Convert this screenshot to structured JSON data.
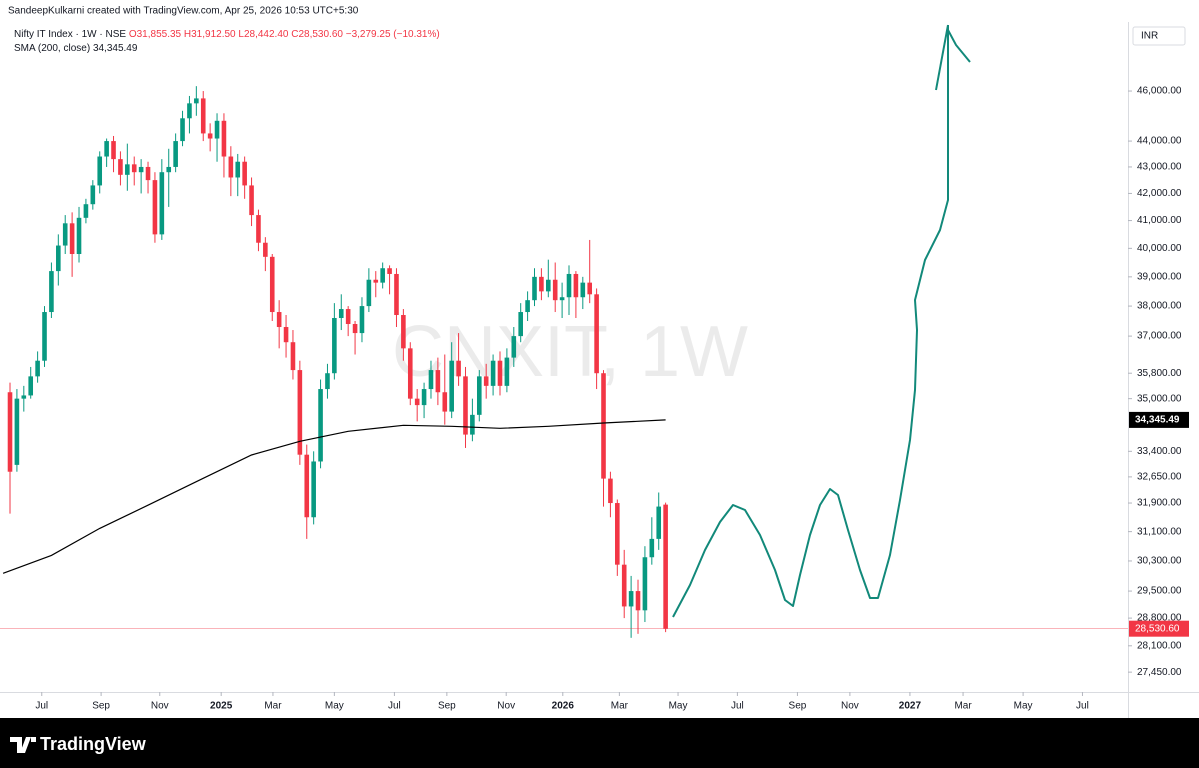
{
  "header": {
    "credit": "SandeepKulkarni created with TradingView.com, Apr 25, 2026 10:53 UTC+5:30",
    "currency": "INR"
  },
  "chart_data": {
    "type": "candlestick",
    "title": "Nifty IT Index · 1W · NSE",
    "watermark": "CNXIT, 1W",
    "ohlc_labels": [
      "O31,855.35",
      "H31,912.50",
      "L28,442.40",
      "C28,530.60"
    ],
    "change_label": "−3,279.25 (−10.31%)",
    "log": true,
    "ylim": [
      26970,
      48910
    ],
    "yticks": [
      {
        "value": 46000,
        "label": "46,000.00"
      },
      {
        "value": 44000,
        "label": "44,000.00"
      },
      {
        "value": 43000,
        "label": "43,000.00"
      },
      {
        "value": 42000,
        "label": "42,000.00"
      },
      {
        "value": 41000,
        "label": "41,000.00"
      },
      {
        "value": 40000,
        "label": "40,000.00"
      },
      {
        "value": 39000,
        "label": "39,000.00"
      },
      {
        "value": 38000,
        "label": "38,000.00"
      },
      {
        "value": 37000,
        "label": "37,000.00"
      },
      {
        "value": 35800,
        "label": "35,800.00"
      },
      {
        "value": 35000,
        "label": "35,000.00"
      },
      {
        "value": 33400,
        "label": "33,400.00"
      },
      {
        "value": 32650,
        "label": "32,650.00"
      },
      {
        "value": 31900,
        "label": "31,900.00"
      },
      {
        "value": 31100,
        "label": "31,100.00"
      },
      {
        "value": 30300,
        "label": "30,300.00"
      },
      {
        "value": 29500,
        "label": "29,500.00"
      },
      {
        "value": 28800,
        "label": "28,800.00"
      },
      {
        "value": 28100,
        "label": "28,100.00"
      },
      {
        "value": 27450,
        "label": "27,450.00"
      }
    ],
    "xlim": [
      -1.45,
      162
    ],
    "xticks": [
      {
        "value": 4.6,
        "label": "Jul"
      },
      {
        "value": 13.2,
        "label": "Sep"
      },
      {
        "value": 21.7,
        "label": "Nov"
      },
      {
        "value": 30.6,
        "label": "2025"
      },
      {
        "value": 38.1,
        "label": "Mar"
      },
      {
        "value": 47.0,
        "label": "May"
      },
      {
        "value": 55.7,
        "label": "Jul"
      },
      {
        "value": 63.3,
        "label": "Sep"
      },
      {
        "value": 71.9,
        "label": "Nov"
      },
      {
        "value": 80.1,
        "label": "2026"
      },
      {
        "value": 88.3,
        "label": "Mar"
      },
      {
        "value": 96.8,
        "label": "May"
      },
      {
        "value": 105.4,
        "label": "Jul"
      },
      {
        "value": 114.1,
        "label": "Sep"
      },
      {
        "value": 121.7,
        "label": "Nov"
      },
      {
        "value": 130.4,
        "label": "2027"
      },
      {
        "value": 138.1,
        "label": "Mar"
      },
      {
        "value": 146.8,
        "label": "May"
      },
      {
        "value": 155.4,
        "label": "Jul"
      }
    ],
    "up_color": "#089981",
    "down_color": "#f23645",
    "open": [
      35200,
      33000,
      35000,
      35100,
      35700,
      36200,
      37800,
      39200,
      40100,
      40900,
      39800,
      41100,
      41600,
      42300,
      43400,
      44000,
      43300,
      42700,
      43100,
      42800,
      43000,
      42500,
      40500,
      42800,
      43000,
      44000,
      44900,
      45500,
      45700,
      44300,
      44100,
      44800,
      43400,
      42600,
      43200,
      42300,
      41200,
      40200,
      39700,
      37800,
      37300,
      36800,
      35900,
      33300,
      31500,
      33100,
      35300,
      35800,
      37600,
      37900,
      37400,
      37100,
      38000,
      38900,
      38800,
      39300,
      39100,
      37700,
      36600,
      35000,
      34800,
      35300,
      35900,
      35200,
      34600,
      36200,
      35700,
      33900,
      34500,
      35700,
      35400,
      36200,
      35400,
      36300,
      37000,
      37800,
      38200,
      39000,
      38500,
      38900,
      38200,
      38300,
      39100,
      38300,
      38800,
      38400,
      35800,
      32600,
      31900,
      30200,
      29100,
      29500,
      29000,
      30400,
      30900,
      31855.35
    ],
    "high": [
      35500,
      35300,
      35400,
      36000,
      36500,
      38000,
      39500,
      40500,
      41200,
      41300,
      41500,
      41800,
      42500,
      43600,
      44100,
      44200,
      43600,
      43900,
      43400,
      43300,
      43200,
      42800,
      43300,
      43700,
      44300,
      45200,
      45800,
      46200,
      46000,
      44700,
      45100,
      45100,
      43800,
      43500,
      43400,
      42600,
      41400,
      40400,
      39800,
      38200,
      37700,
      37200,
      36200,
      33600,
      33400,
      35600,
      36100,
      38100,
      38400,
      38000,
      37500,
      38300,
      39300,
      39200,
      39500,
      39400,
      39300,
      37900,
      36800,
      35300,
      35500,
      36200,
      36300,
      36400,
      36800,
      37100,
      36000,
      35000,
      35900,
      36100,
      36400,
      36500,
      36600,
      37300,
      38100,
      38500,
      39300,
      39300,
      39600,
      39500,
      38800,
      39400,
      39200,
      39000,
      40300,
      38600,
      35900,
      32800,
      32000,
      30600,
      29900,
      29800,
      30700,
      31500,
      32200,
      31912.5
    ],
    "low": [
      31600,
      32800,
      34600,
      35000,
      35500,
      36000,
      37600,
      38700,
      39800,
      39000,
      39500,
      40900,
      41400,
      42000,
      43000,
      42800,
      42300,
      42100,
      42300,
      42000,
      42000,
      40200,
      40300,
      41500,
      42800,
      43800,
      44300,
      45000,
      44000,
      43600,
      43200,
      42600,
      41900,
      41900,
      41800,
      40800,
      39900,
      39200,
      37500,
      36600,
      36300,
      35600,
      33000,
      30900,
      31300,
      32900,
      35000,
      35600,
      37200,
      37000,
      36400,
      36800,
      37800,
      38300,
      38600,
      38400,
      37300,
      36200,
      34800,
      34300,
      34400,
      35000,
      34800,
      34200,
      34400,
      35400,
      33500,
      33700,
      34300,
      35000,
      35100,
      35100,
      35200,
      36000,
      36800,
      37500,
      38000,
      38200,
      38300,
      37800,
      37600,
      37700,
      37600,
      37900,
      38100,
      35300,
      31800,
      31500,
      29900,
      28800,
      28300,
      28400,
      28700,
      30200,
      30600,
      28442.4
    ],
    "close": [
      32800,
      35000,
      35100,
      35700,
      36200,
      37800,
      39200,
      40100,
      40900,
      39800,
      41100,
      41600,
      42300,
      43400,
      44000,
      43300,
      42700,
      43100,
      42800,
      43000,
      42500,
      40500,
      42800,
      43000,
      44000,
      44900,
      45500,
      45700,
      44300,
      44100,
      44800,
      43400,
      42600,
      43200,
      42300,
      41200,
      40200,
      39700,
      37800,
      37300,
      36800,
      35900,
      33300,
      31500,
      33100,
      35300,
      35800,
      37600,
      37900,
      37400,
      37100,
      38000,
      38900,
      38800,
      39300,
      39100,
      37700,
      36600,
      35000,
      34800,
      35300,
      35900,
      35200,
      34600,
      36200,
      35700,
      33900,
      34500,
      35700,
      35400,
      36200,
      35400,
      36300,
      37000,
      37800,
      38200,
      39000,
      38500,
      38900,
      38200,
      38300,
      39100,
      38300,
      38800,
      38400,
      35800,
      32600,
      31900,
      30200,
      29100,
      29500,
      29000,
      30400,
      30900,
      31800,
      28530.6
    ],
    "last_label": "28,530.60",
    "series": [
      {
        "name": "SMA (200, close)",
        "color": "#000000",
        "x": [
          -1,
          6,
          13,
          20,
          28,
          35,
          42,
          49,
          57,
          64,
          71,
          78,
          86,
          95
        ],
        "values": [
          29970,
          30450,
          31190,
          31840,
          32610,
          33290,
          33700,
          34000,
          34180,
          34150,
          34090,
          34150,
          34250,
          34345.49
        ],
        "value_label": "34,345.49"
      }
    ]
  },
  "footer": {
    "brand": "TradingView"
  }
}
